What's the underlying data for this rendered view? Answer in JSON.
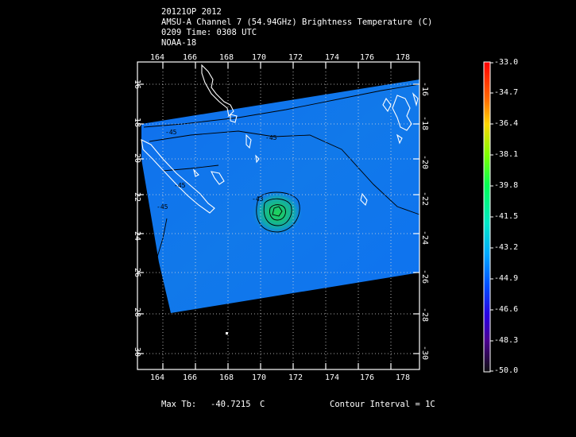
{
  "header": {
    "line1": "20121OP 2012",
    "line2": "AMSU-A Channel 7 (54.94GHz) Brightness Temperature (C)",
    "line3": "0209 Time: 0308 UTC",
    "line4": "NOAA-18"
  },
  "map": {
    "lon_ticks": [
      "164",
      "166",
      "168",
      "170",
      "172",
      "174",
      "176",
      "178"
    ],
    "lat_ticks": [
      "-16",
      "-18",
      "-20",
      "-22",
      "-24",
      "-26",
      "-28",
      "-30"
    ],
    "contour_labels": [
      "-45",
      "-45",
      "-45",
      "-43",
      "-45"
    ],
    "lon_range": [
      163,
      179
    ],
    "lat_range": [
      -31,
      -15
    ]
  },
  "colorbar": {
    "labels": [
      "-33.0",
      "-34.7",
      "-36.4",
      "-38.1",
      "-39.8",
      "-41.5",
      "-43.2",
      "-44.9",
      "-46.6",
      "-48.3",
      "-50.0"
    ],
    "max": -33.0,
    "min": -50.0
  },
  "footer": {
    "max_tb_label": "Max Tb:",
    "max_tb_value": "-40.7215",
    "max_tb_unit": "C",
    "contour_interval": "Contour Interval = 1C"
  }
}
